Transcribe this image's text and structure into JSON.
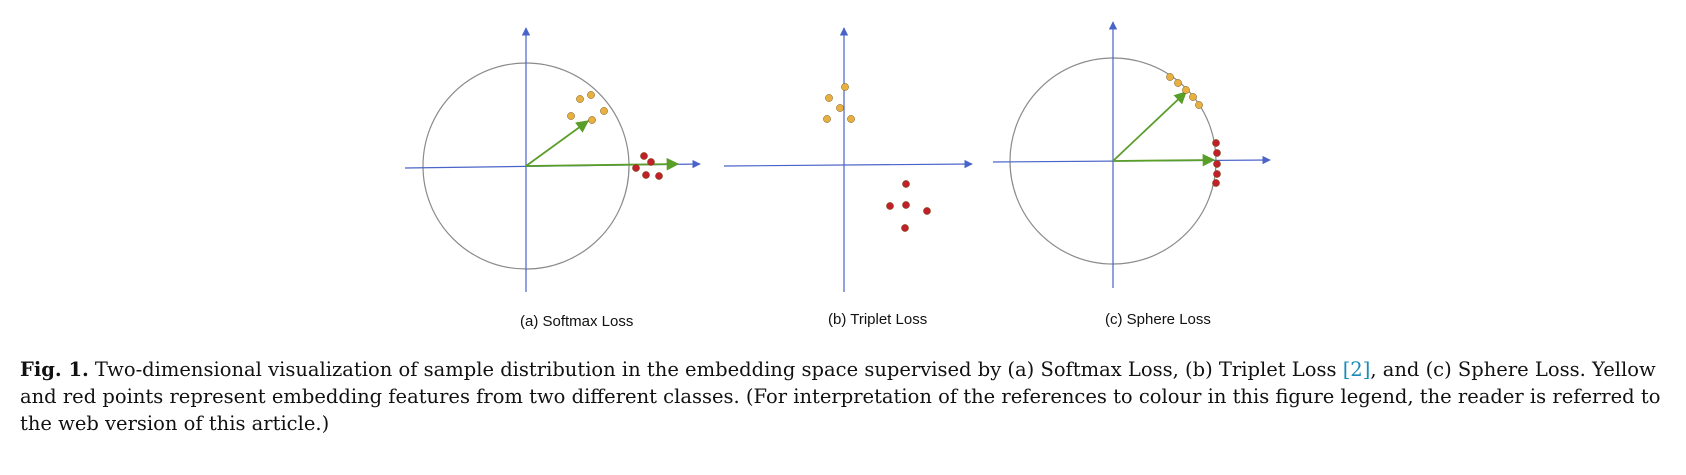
{
  "panels": [
    {
      "label": "(a) Softmax Loss"
    },
    {
      "label": "(b) Triplet Loss"
    },
    {
      "label": "(c) Sphere Loss"
    }
  ],
  "caption": {
    "fig_label": "Fig. 1.",
    "text_before_ref": "Two-dimensional visualization of sample distribution in the embedding space supervised by (a) Softmax Loss, (b) Triplet Loss ",
    "ref": "[2]",
    "text_after_ref": ", and (c) Sphere Loss. Yellow and red points represent embedding features from two different classes. (For interpretation of the references to colour in this figure legend, the reader is referred to the web version of this article.)"
  },
  "colors": {
    "axis": "#4a63c8",
    "circle": "#8a8a8a",
    "arrow": "#5a9e2a",
    "yellow_point": "#e8b040",
    "red_point": "#c0202a",
    "link": "#1a8ab8"
  }
}
